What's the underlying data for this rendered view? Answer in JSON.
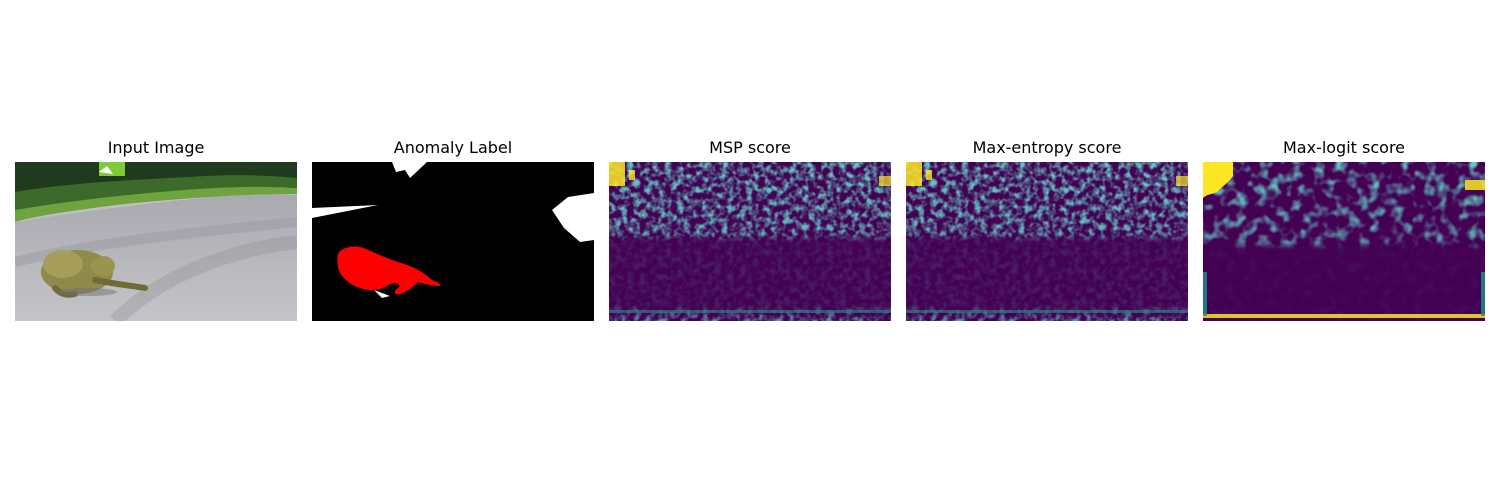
{
  "figure": {
    "panels": [
      {
        "id": "input",
        "title": "Input Image"
      },
      {
        "id": "label",
        "title": "Anomaly Label"
      },
      {
        "id": "msp",
        "title": "MSP score"
      },
      {
        "id": "entropy",
        "title": "Max-entropy score"
      },
      {
        "id": "logit",
        "title": "Max-logit score"
      }
    ]
  },
  "colors": {
    "anomaly": "#ff0000",
    "ignore": "#ffffff",
    "background": "#000000",
    "viridis_low": "#440154",
    "viridis_mid": "#21918c",
    "viridis_high": "#fde725"
  }
}
